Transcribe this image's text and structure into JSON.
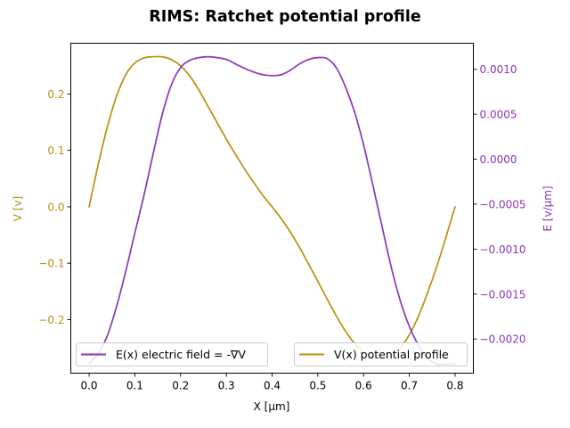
{
  "chart_data": {
    "type": "line",
    "title": "RIMS: Ratchet potential profile",
    "xlabel": "X [μm]",
    "ylabel_left": "V [v]",
    "ylabel_right": "E [v/μm]",
    "xlim": [
      -0.04,
      0.84
    ],
    "ylim_left": [
      -0.295,
      0.29
    ],
    "ylim_right": [
      -0.00238,
      0.00129
    ],
    "x_ticks": [
      0.0,
      0.1,
      0.2,
      0.3,
      0.4,
      0.5,
      0.6,
      0.7,
      0.8
    ],
    "x_tick_labels": [
      "0.0",
      "0.1",
      "0.2",
      "0.3",
      "0.4",
      "0.5",
      "0.6",
      "0.7",
      "0.8"
    ],
    "y_left_ticks": [
      -0.2,
      -0.1,
      0.0,
      0.1,
      0.2
    ],
    "y_left_tick_labels": [
      "−0.2",
      "−0.1",
      "0.0",
      "0.1",
      "0.2"
    ],
    "y_right_ticks": [
      -0.002,
      -0.0015,
      -0.001,
      -0.0005,
      0.0,
      0.0005,
      0.001
    ],
    "y_right_tick_labels": [
      "−0.0020",
      "−0.0015",
      "−0.0010",
      "−0.0005",
      "0.0000",
      "0.0005",
      "0.0010"
    ],
    "grid": false,
    "series": [
      {
        "name": "V(x) potential profile",
        "axis": "left",
        "color": "#b8900f",
        "legend_position": "lower-right",
        "x": [
          0.0,
          0.02,
          0.04,
          0.06,
          0.08,
          0.1,
          0.12,
          0.14,
          0.16,
          0.18,
          0.2,
          0.22,
          0.24,
          0.26,
          0.28,
          0.3,
          0.32,
          0.34,
          0.36,
          0.38,
          0.4,
          0.42,
          0.44,
          0.46,
          0.48,
          0.5,
          0.52,
          0.54,
          0.56,
          0.58,
          0.6,
          0.62,
          0.64,
          0.66,
          0.68,
          0.7,
          0.72,
          0.74,
          0.76,
          0.78,
          0.8
        ],
        "y": [
          0.0,
          0.075,
          0.142,
          0.196,
          0.234,
          0.255,
          0.264,
          0.266,
          0.266,
          0.261,
          0.25,
          0.232,
          0.207,
          0.178,
          0.149,
          0.12,
          0.093,
          0.067,
          0.043,
          0.02,
          0.0,
          -0.021,
          -0.045,
          -0.072,
          -0.102,
          -0.132,
          -0.163,
          -0.193,
          -0.22,
          -0.242,
          -0.257,
          -0.266,
          -0.268,
          -0.263,
          -0.25,
          -0.227,
          -0.194,
          -0.152,
          -0.106,
          -0.054,
          0.0
        ]
      },
      {
        "name": "E(x) electric field = -∇V",
        "axis": "right",
        "color": "#8a35b8",
        "legend_position": "lower-left",
        "x": [
          0.0,
          0.02,
          0.04,
          0.06,
          0.08,
          0.1,
          0.12,
          0.14,
          0.16,
          0.18,
          0.2,
          0.22,
          0.24,
          0.26,
          0.28,
          0.3,
          0.32,
          0.34,
          0.36,
          0.38,
          0.4,
          0.42,
          0.44,
          0.46,
          0.48,
          0.5,
          0.52,
          0.54,
          0.56,
          0.58,
          0.6,
          0.62,
          0.64,
          0.66,
          0.68,
          0.7,
          0.72,
          0.74,
          0.76,
          0.78,
          0.8
        ],
        "y": [
          -0.00227,
          -0.00216,
          -0.00196,
          -0.00164,
          -0.00125,
          -0.00082,
          -0.0004,
          6e-05,
          0.0005,
          0.00083,
          0.00102,
          0.0011,
          0.00113,
          0.00114,
          0.00113,
          0.00111,
          0.00106,
          0.00101,
          0.00097,
          0.00094,
          0.00093,
          0.00094,
          0.00099,
          0.00106,
          0.00111,
          0.00113,
          0.00112,
          0.00102,
          0.00081,
          0.00053,
          0.00016,
          -0.00028,
          -0.00074,
          -0.00119,
          -0.00157,
          -0.00186,
          -0.00207,
          -0.00221,
          -0.00228,
          -0.00228,
          -0.00228
        ]
      }
    ]
  }
}
